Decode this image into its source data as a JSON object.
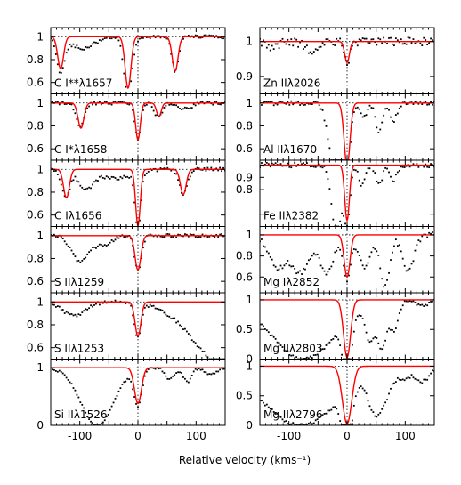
{
  "figure": {
    "xlabel": "Relative velocity (kms⁻¹)",
    "colors": {
      "model": "#ff0000",
      "data": "#000000",
      "frame": "#000000"
    }
  },
  "chart_data": [
    {
      "type": "line",
      "column": "left",
      "row": 0,
      "label": "C I**λ1657",
      "xlim": [
        -150,
        150
      ],
      "ylim": [
        0.5,
        1.08
      ],
      "yticks": [
        0.6,
        0.8,
        1
      ],
      "ytick_labels": [
        "0.6",
        "0.8",
        "1"
      ],
      "xticks": [
        -100,
        0,
        100
      ],
      "model_components": [
        {
          "v": -133,
          "depth": 0.28,
          "width": 5
        },
        {
          "v": -17,
          "depth": 0.45,
          "width": 5
        },
        {
          "v": 64,
          "depth": 0.3,
          "width": 5
        }
      ],
      "data_features": [
        {
          "v": -133,
          "depth": 0.3,
          "width": 7
        },
        {
          "v": -95,
          "depth": 0.1,
          "width": 20
        },
        {
          "v": -17,
          "depth": 0.52,
          "width": 7
        },
        {
          "v": 64,
          "depth": 0.3,
          "width": 6
        }
      ],
      "data_noise": 0.015
    },
    {
      "type": "line",
      "column": "left",
      "row": 1,
      "label": "C I*λ1658",
      "xlim": [
        -150,
        150
      ],
      "ylim": [
        0.5,
        1.08
      ],
      "yticks": [
        0.6,
        0.8,
        1
      ],
      "ytick_labels": [
        "0.6",
        "0.8",
        "1"
      ],
      "xticks": [
        -100,
        0,
        100
      ],
      "model_components": [
        {
          "v": -98,
          "depth": 0.22,
          "width": 5
        },
        {
          "v": 0,
          "depth": 0.32,
          "width": 4
        },
        {
          "v": 36,
          "depth": 0.12,
          "width": 4
        }
      ],
      "data_features": [
        {
          "v": -100,
          "depth": 0.2,
          "width": 7
        },
        {
          "v": 0,
          "depth": 0.32,
          "width": 5
        },
        {
          "v": 35,
          "depth": 0.12,
          "width": 7
        },
        {
          "v": 80,
          "depth": 0.05,
          "width": 12
        }
      ],
      "data_noise": 0.015
    },
    {
      "type": "line",
      "column": "left",
      "row": 2,
      "label": "C Iλ1656",
      "xlim": [
        -150,
        150
      ],
      "ylim": [
        0.5,
        1.08
      ],
      "yticks": [
        0.6,
        0.8,
        1
      ],
      "ytick_labels": [
        "0.6",
        "0.8",
        "1"
      ],
      "xticks": [
        -100,
        0,
        100
      ],
      "model_components": [
        {
          "v": -123,
          "depth": 0.25,
          "width": 5
        },
        {
          "v": 0,
          "depth": 0.49,
          "width": 4
        },
        {
          "v": 78,
          "depth": 0.22,
          "width": 5
        }
      ],
      "data_features": [
        {
          "v": -124,
          "depth": 0.25,
          "width": 7
        },
        {
          "v": -90,
          "depth": 0.16,
          "width": 12
        },
        {
          "v": -40,
          "depth": 0.08,
          "width": 30
        },
        {
          "v": 0,
          "depth": 0.5,
          "width": 5
        },
        {
          "v": 78,
          "depth": 0.22,
          "width": 7
        }
      ],
      "data_noise": 0.015
    },
    {
      "type": "line",
      "column": "left",
      "row": 3,
      "label": "S IIλ1259",
      "xlim": [
        -150,
        150
      ],
      "ylim": [
        0.5,
        1.08
      ],
      "yticks": [
        0.6,
        0.8,
        1
      ],
      "ytick_labels": [
        "0.6",
        "0.8",
        "1"
      ],
      "xticks": [
        -100,
        0,
        100
      ],
      "model_components": [
        {
          "v": 0,
          "depth": 0.3,
          "width": 5
        }
      ],
      "data_features": [
        {
          "v": -100,
          "depth": 0.22,
          "width": 15
        },
        {
          "v": -60,
          "depth": 0.08,
          "width": 15
        },
        {
          "v": 0,
          "depth": 0.3,
          "width": 6
        }
      ],
      "data_noise": 0.015
    },
    {
      "type": "line",
      "column": "left",
      "row": 4,
      "label": "S IIλ1253",
      "xlim": [
        -150,
        150
      ],
      "ylim": [
        0.5,
        1.08
      ],
      "yticks": [
        0.6,
        0.8,
        1
      ],
      "ytick_labels": [
        "0.6",
        "0.8",
        "1"
      ],
      "xticks": [
        -100,
        0,
        100
      ],
      "model_components": [
        {
          "v": 0,
          "depth": 0.3,
          "width": 5
        }
      ],
      "data_features": [
        {
          "v": -110,
          "depth": 0.12,
          "width": 20
        },
        {
          "v": 0,
          "depth": 0.3,
          "width": 6
        },
        {
          "v": 150,
          "depth": 0.55,
          "width": 55
        }
      ],
      "data_noise": 0.015
    },
    {
      "type": "line",
      "column": "left",
      "row": 5,
      "label": "Si IIλ1526",
      "xlim": [
        -150,
        150
      ],
      "ylim": [
        0,
        1.15
      ],
      "yticks": [
        0,
        1
      ],
      "ytick_labels": [
        "0",
        "1"
      ],
      "xticks": [
        -100,
        0,
        100
      ],
      "xtick_labels": [
        "-100",
        "0",
        "100"
      ],
      "model_components": [
        {
          "v": 0,
          "depth": 0.62,
          "width": 6
        }
      ],
      "data_features": [
        {
          "v": -70,
          "depth": 1.0,
          "width": 28
        },
        {
          "v": 0,
          "depth": 0.62,
          "width": 7
        },
        {
          "v": 55,
          "depth": 0.2,
          "width": 8
        },
        {
          "v": 85,
          "depth": 0.25,
          "width": 7
        },
        {
          "v": 125,
          "depth": 0.12,
          "width": 10
        }
      ],
      "data_noise": 0.02
    },
    {
      "type": "line",
      "column": "right",
      "row": 0,
      "label": "Zn IIλ2026",
      "xlim": [
        -150,
        150
      ],
      "ylim": [
        0.85,
        1.04
      ],
      "yticks": [
        0.9,
        1
      ],
      "ytick_labels": [
        "0.9",
        "1"
      ],
      "xticks": [
        -100,
        0,
        100
      ],
      "model_components": [
        {
          "v": 0,
          "depth": 0.06,
          "width": 4
        }
      ],
      "data_features": [
        {
          "v": -130,
          "depth": 0.02,
          "width": 10
        },
        {
          "v": -60,
          "depth": 0.03,
          "width": 12
        },
        {
          "v": 0,
          "depth": 0.06,
          "width": 5
        }
      ],
      "data_noise": 0.012
    },
    {
      "type": "line",
      "column": "right",
      "row": 1,
      "label": "Al IIλ1670",
      "xlim": [
        -150,
        150
      ],
      "ylim": [
        0.5,
        1.08
      ],
      "yticks": [
        0.6,
        0.8,
        1
      ],
      "ytick_labels": [
        "0.6",
        "0.8",
        "1"
      ],
      "xticks": [
        -100,
        0,
        100
      ],
      "model_components": [
        {
          "v": 0,
          "depth": 0.55,
          "width": 5
        }
      ],
      "data_features": [
        {
          "v": -20,
          "depth": 0.6,
          "width": 11
        },
        {
          "v": 0,
          "depth": 0.5,
          "width": 6
        },
        {
          "v": 28,
          "depth": 0.12,
          "width": 6
        },
        {
          "v": 55,
          "depth": 0.25,
          "width": 6
        },
        {
          "v": 80,
          "depth": 0.15,
          "width": 6
        }
      ],
      "data_noise": 0.02
    },
    {
      "type": "line",
      "column": "right",
      "row": 2,
      "label": "Fe IIλ2382",
      "xlim": [
        -150,
        150
      ],
      "ylim": [
        0.5,
        1.04
      ],
      "yticks": [
        0.6,
        0.8,
        0.9,
        1
      ],
      "ytick_labels": [
        "",
        "0.8",
        "0.9",
        ""
      ],
      "xticks": [
        -100,
        0,
        100
      ],
      "model_components": [
        {
          "v": 0,
          "depth": 0.45,
          "width": 4
        }
      ],
      "data_features": [
        {
          "v": -18,
          "depth": 0.6,
          "width": 8
        },
        {
          "v": 0,
          "depth": 0.45,
          "width": 5
        },
        {
          "v": 25,
          "depth": 0.18,
          "width": 5
        },
        {
          "v": 55,
          "depth": 0.15,
          "width": 6
        },
        {
          "v": 80,
          "depth": 0.12,
          "width": 6
        }
      ],
      "data_noise": 0.02
    },
    {
      "type": "line",
      "column": "right",
      "row": 3,
      "label": "Mg Iλ2852",
      "xlim": [
        -150,
        150
      ],
      "ylim": [
        0.45,
        1.08
      ],
      "yticks": [
        0.6,
        0.8,
        1
      ],
      "ytick_labels": [
        "0.6",
        "0.8",
        "1"
      ],
      "xticks": [
        -100,
        0,
        100
      ],
      "model_components": [
        {
          "v": 0,
          "depth": 0.4,
          "width": 5
        }
      ],
      "data_features": [
        {
          "v": -120,
          "depth": 0.3,
          "width": 15
        },
        {
          "v": -80,
          "depth": 0.35,
          "width": 15
        },
        {
          "v": -35,
          "depth": 0.35,
          "width": 12
        },
        {
          "v": 0,
          "depth": 0.45,
          "width": 6
        },
        {
          "v": 30,
          "depth": 0.3,
          "width": 10
        },
        {
          "v": 65,
          "depth": 0.5,
          "width": 8
        },
        {
          "v": 105,
          "depth": 0.35,
          "width": 10
        }
      ],
      "data_noise": 0.025
    },
    {
      "type": "line",
      "column": "right",
      "row": 4,
      "label": "Mg IIλ2803",
      "xlim": [
        -150,
        150
      ],
      "ylim": [
        0,
        1.12
      ],
      "yticks": [
        0,
        0.5,
        1
      ],
      "ytick_labels": [
        "0",
        "0.5",
        "1"
      ],
      "xticks": [
        -100,
        0,
        100
      ],
      "model_components": [
        {
          "v": 0,
          "depth": 0.97,
          "width": 6
        }
      ],
      "data_features": [
        {
          "v": -75,
          "depth": 1.0,
          "width": 55
        },
        {
          "v": 0,
          "depth": 0.98,
          "width": 7
        },
        {
          "v": 40,
          "depth": 0.6,
          "width": 8
        },
        {
          "v": 60,
          "depth": 0.75,
          "width": 7
        },
        {
          "v": 80,
          "depth": 0.5,
          "width": 8
        },
        {
          "v": 130,
          "depth": 0.1,
          "width": 10
        }
      ],
      "data_noise": 0.025
    },
    {
      "type": "line",
      "column": "right",
      "row": 5,
      "label": "Mg IIλ2796",
      "xlim": [
        -150,
        150
      ],
      "ylim": [
        0,
        1.12
      ],
      "yticks": [
        0,
        0.5,
        1
      ],
      "ytick_labels": [
        "0",
        "0.5",
        "1"
      ],
      "xticks": [
        -100,
        0,
        100
      ],
      "xtick_labels": [
        "-100",
        "0",
        "100"
      ],
      "model_components": [
        {
          "v": 0,
          "depth": 0.97,
          "width": 8
        }
      ],
      "data_features": [
        {
          "v": -80,
          "depth": 1.0,
          "width": 65
        },
        {
          "v": 0,
          "depth": 0.98,
          "width": 8
        },
        {
          "v": 50,
          "depth": 0.7,
          "width": 12
        },
        {
          "v": 70,
          "depth": 0.25,
          "width": 8
        },
        {
          "v": 95,
          "depth": 0.2,
          "width": 12
        },
        {
          "v": 130,
          "depth": 0.25,
          "width": 12
        }
      ],
      "data_noise": 0.03
    }
  ]
}
